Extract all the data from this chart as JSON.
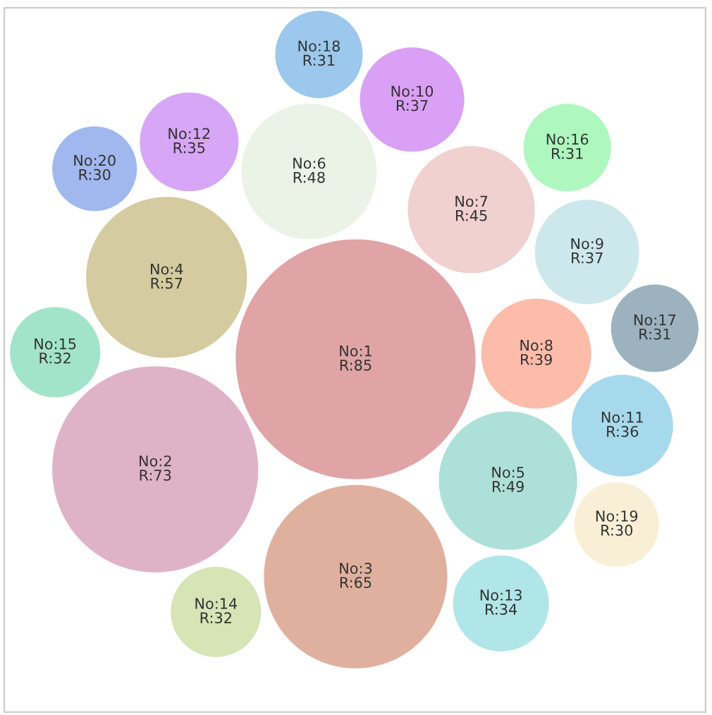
{
  "chart_data": {
    "type": "other",
    "categories": [
      "No:1",
      "No:2",
      "No:3",
      "No:4",
      "No:5",
      "No:6",
      "No:7",
      "No:8",
      "No:9",
      "No:10",
      "No:11",
      "No:12",
      "No:13",
      "No:14",
      "No:15",
      "No:16",
      "No:17",
      "No:18",
      "No:19",
      "No:20"
    ],
    "values": [
      85,
      73,
      65,
      57,
      49,
      48,
      45,
      39,
      37,
      37,
      36,
      35,
      34,
      32,
      32,
      31,
      31,
      31,
      30,
      30
    ],
    "value_labels": [
      "R:85",
      "R:73",
      "R:65",
      "R:57",
      "R:49",
      "R:48",
      "R:45",
      "R:39",
      "R:37",
      "R:37",
      "R:36",
      "R:35",
      "R:34",
      "R:32",
      "R:32",
      "R:31",
      "R:31",
      "R:31",
      "R:30",
      "R:30"
    ],
    "colors": [
      "#e0a4a6",
      "#dfb3c7",
      "#e0b09e",
      "#d5cba0",
      "#ade0d8",
      "#eaf3e6",
      "#f1d0d0",
      "#fdbca9",
      "#cde8ec",
      "#d9a0f5",
      "#a7d9ec",
      "#d7a6f6",
      "#b0e6e8",
      "#d6e4b6",
      "#a2e4cb",
      "#aef7be",
      "#9cb3bf",
      "#9bc8ec",
      "#f8efd6",
      "#a0b8ee"
    ]
  }
}
